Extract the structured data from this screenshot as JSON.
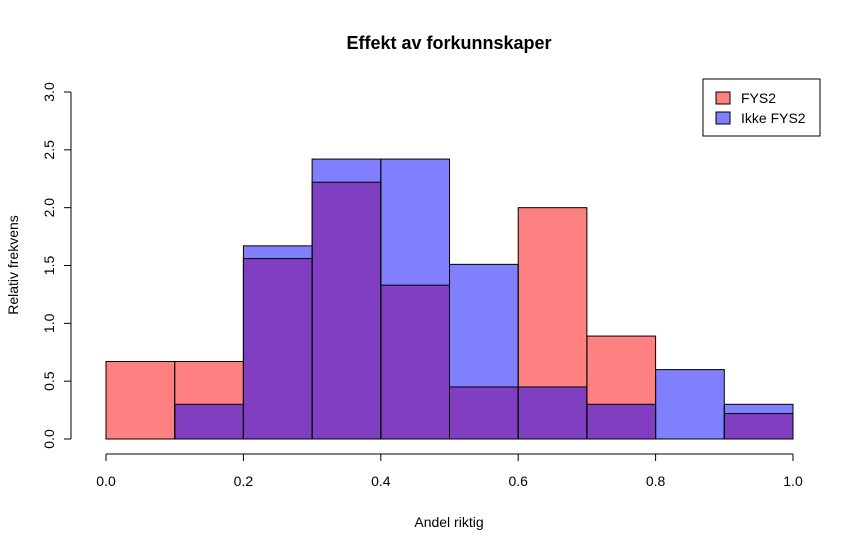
{
  "chart_data": {
    "type": "bar",
    "subtype": "overlaid-histogram",
    "title": "Effekt av forkunnskaper",
    "xlabel": "Andel riktig",
    "ylabel": "Relativ frekvens",
    "xlim": [
      0.0,
      1.0
    ],
    "ylim": [
      0.0,
      3.0
    ],
    "xticks": [
      "0.0",
      "0.2",
      "0.4",
      "0.6",
      "0.8",
      "1.0"
    ],
    "yticks": [
      "0.0",
      "0.5",
      "1.0",
      "1.5",
      "2.0",
      "2.5",
      "3.0"
    ],
    "bin_edges": [
      0.0,
      0.1,
      0.2,
      0.3,
      0.4,
      0.5,
      0.6,
      0.7,
      0.8,
      0.9,
      1.0
    ],
    "series": [
      {
        "name": "FYS2",
        "color": "#ff8080",
        "values": [
          0.67,
          0.67,
          1.56,
          2.22,
          1.33,
          0.45,
          2.0,
          0.89,
          0.0,
          0.22
        ]
      },
      {
        "name": "Ikke FYS2",
        "color": "#8080ff",
        "values": [
          0.0,
          0.3,
          1.67,
          2.42,
          2.42,
          1.51,
          0.45,
          0.3,
          0.6,
          0.3
        ]
      }
    ],
    "overlap_color": "#803fc0",
    "legend": {
      "position": "top-right",
      "entries": [
        "FYS2",
        "Ikke FYS2"
      ]
    },
    "grid": false
  }
}
